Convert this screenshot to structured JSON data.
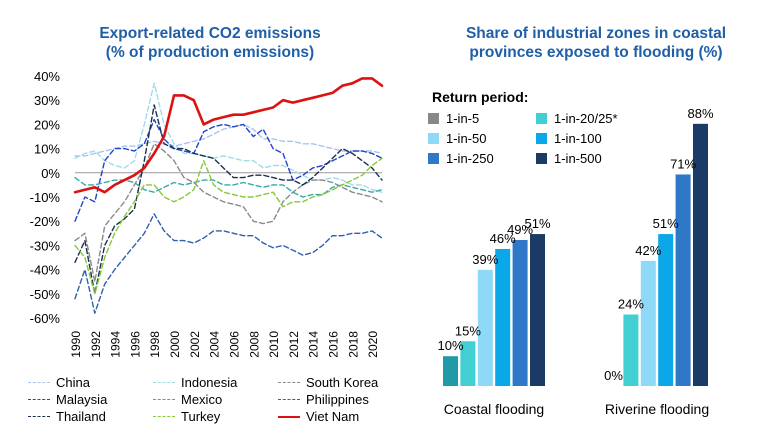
{
  "chart_data": [
    {
      "type": "line",
      "title": "Export-related CO2 emissions\n(% of production emissions)",
      "title_lines": [
        "Export-related CO2 emissions",
        "(% of production emissions)"
      ],
      "ylim": [
        -60,
        40
      ],
      "yticks": [
        40,
        30,
        20,
        10,
        0,
        -10,
        -20,
        -30,
        -40,
        -50,
        -60
      ],
      "ytick_labels": [
        "40%",
        "30%",
        "20%",
        "10%",
        "0%",
        "-10%",
        "-20%",
        "-30%",
        "-40%",
        "-50%",
        "-60%"
      ],
      "xlim": [
        1990,
        2021
      ],
      "xtick_labels": [
        "1990",
        "1992",
        "1994",
        "1996",
        "1998",
        "2000",
        "2002",
        "2004",
        "2006",
        "2008",
        "2010",
        "2012",
        "2014",
        "2016",
        "2018",
        "2020"
      ],
      "x": [
        1990,
        1991,
        1992,
        1993,
        1994,
        1995,
        1996,
        1997,
        1998,
        1999,
        2000,
        2001,
        2002,
        2003,
        2004,
        2005,
        2006,
        2007,
        2008,
        2009,
        2010,
        2011,
        2012,
        2013,
        2014,
        2015,
        2016,
        2017,
        2018,
        2019,
        2020,
        2021
      ],
      "series": [
        {
          "name": "China",
          "color": "#a9c4ee",
          "dash": "5,3",
          "width": 1.4,
          "values": [
            7,
            7,
            8,
            9,
            10,
            11,
            11,
            12,
            13,
            12,
            11,
            12,
            13,
            14,
            16,
            18,
            19,
            20,
            18,
            14,
            14,
            13,
            13,
            12,
            12,
            11,
            10,
            9,
            9,
            9,
            9,
            8
          ]
        },
        {
          "name": "Indonesia",
          "color": "#9fdcea",
          "dash": "5,3",
          "width": 1.4,
          "values": [
            6,
            8,
            9,
            5,
            3,
            2,
            5,
            20,
            37,
            20,
            12,
            8,
            8,
            7,
            6,
            7,
            6,
            5,
            5,
            2,
            3,
            3,
            1,
            -1,
            -3,
            -3,
            -2,
            -3,
            -5,
            -5,
            -7,
            -8
          ]
        },
        {
          "name": "South Korea",
          "color": "#8a8a8a",
          "dash": "5,3",
          "width": 1.4,
          "values": [
            -28,
            -25,
            -45,
            -22,
            -17,
            -12,
            -5,
            2,
            12,
            9,
            5,
            -2,
            -4,
            -8,
            -10,
            -12,
            -13,
            -14,
            -20,
            -21,
            -20,
            -12,
            -8,
            -5,
            -3,
            -3,
            -4,
            -6,
            -8,
            -9,
            -10,
            -12
          ]
        },
        {
          "name": "Malaysia",
          "color": "#2244cc",
          "dash": "5,3",
          "width": 1.4,
          "values": [
            -20,
            -10,
            -12,
            5,
            10,
            10,
            9,
            12,
            22,
            14,
            10,
            9,
            8,
            17,
            19,
            20,
            19,
            20,
            15,
            18,
            10,
            8,
            -3,
            -1,
            2,
            3,
            5,
            7,
            9,
            9,
            8,
            6
          ]
        },
        {
          "name": "Mexico",
          "color": "#3aa9a9",
          "dash": "5,3",
          "width": 1.4,
          "values": [
            -2,
            -5,
            -5,
            -4,
            -3,
            -3,
            -4,
            -7,
            -8,
            -6,
            -4,
            -5,
            -4,
            -3,
            -3,
            -5,
            -5,
            -4,
            -5,
            -6,
            -5,
            -5,
            -8,
            -10,
            -9,
            -9,
            -6,
            -5,
            -6,
            -7,
            -8,
            -7
          ]
        },
        {
          "name": "Philippines",
          "color": "#2e5fb0",
          "dash": "5,3",
          "width": 1.4,
          "values": [
            -52,
            -40,
            -58,
            -46,
            -40,
            -35,
            -30,
            -25,
            -17,
            -24,
            -28,
            -28,
            -29,
            -27,
            -24,
            -24,
            -25,
            -26,
            -26,
            -29,
            -31,
            -30,
            -32,
            -34,
            -33,
            -30,
            -26,
            -26,
            -25,
            -25,
            -24,
            -27
          ]
        },
        {
          "name": "Thailand",
          "color": "#1a3050",
          "dash": "5,3",
          "width": 1.4,
          "values": [
            -37,
            -28,
            -50,
            -30,
            -22,
            -19,
            -15,
            5,
            28,
            12,
            10,
            10,
            8,
            7,
            6,
            2,
            -2,
            -2,
            -1,
            -1,
            -2,
            -3,
            -3,
            -5,
            -2,
            2,
            6,
            10,
            8,
            5,
            2,
            -3
          ]
        },
        {
          "name": "Turkey",
          "color": "#86c83a",
          "dash": "5,3",
          "width": 1.4,
          "values": [
            -30,
            -35,
            -50,
            -35,
            -25,
            -18,
            -12,
            -5,
            -5,
            -10,
            -12,
            -10,
            -7,
            5,
            -5,
            -8,
            -9,
            -10,
            -10,
            -9,
            -8,
            -14,
            -12,
            -12,
            -10,
            -9,
            -7,
            -5,
            -3,
            -1,
            3,
            6
          ]
        },
        {
          "name": "Viet Nam",
          "color": "#dd1111",
          "dash": "",
          "width": 2.6,
          "values": [
            -8,
            -7,
            -6,
            -8,
            -5,
            -3,
            -1,
            2,
            8,
            15,
            32,
            32,
            30,
            20,
            22,
            23,
            24,
            24,
            25,
            26,
            27,
            30,
            29,
            30,
            31,
            32,
            33,
            36,
            37,
            39,
            39,
            36
          ]
        }
      ]
    },
    {
      "type": "bar",
      "title": "Share of industrial zones in coastal\nprovinces exposed to flooding (%)",
      "title_lines": [
        "Share of industrial zones in coastal",
        "provinces exposed to flooding (%)"
      ],
      "legend_title": "Return period:",
      "ylim": [
        0,
        100
      ],
      "categories": [
        "Coastal flooding",
        "Riverine flooding"
      ],
      "series": [
        {
          "name": "1-in-5",
          "color": "#1f9aa6",
          "values": [
            10,
            0
          ]
        },
        {
          "name": "1-in-20/25*",
          "color": "#41cfd3",
          "values": [
            15,
            24
          ]
        },
        {
          "name": "1-in-50",
          "color": "#8fd9f8",
          "values": [
            39,
            42
          ]
        },
        {
          "name": "1-in-100",
          "color": "#0aa8e8",
          "values": [
            46,
            51
          ]
        },
        {
          "name": "1-in-250",
          "color": "#2f78c8",
          "values": [
            49,
            71
          ]
        },
        {
          "name": "1-in-500",
          "color": "#1b3a66",
          "values": [
            51,
            88
          ]
        }
      ],
      "data_labels": [
        [
          "10%",
          "15%",
          "39%",
          "46%",
          "49%",
          "51%"
        ],
        [
          "0%",
          "24%",
          "42%",
          "51%",
          "71%",
          "88%"
        ]
      ],
      "legend_swatch_overrides": {
        "1-in-5": "#888888"
      }
    }
  ]
}
